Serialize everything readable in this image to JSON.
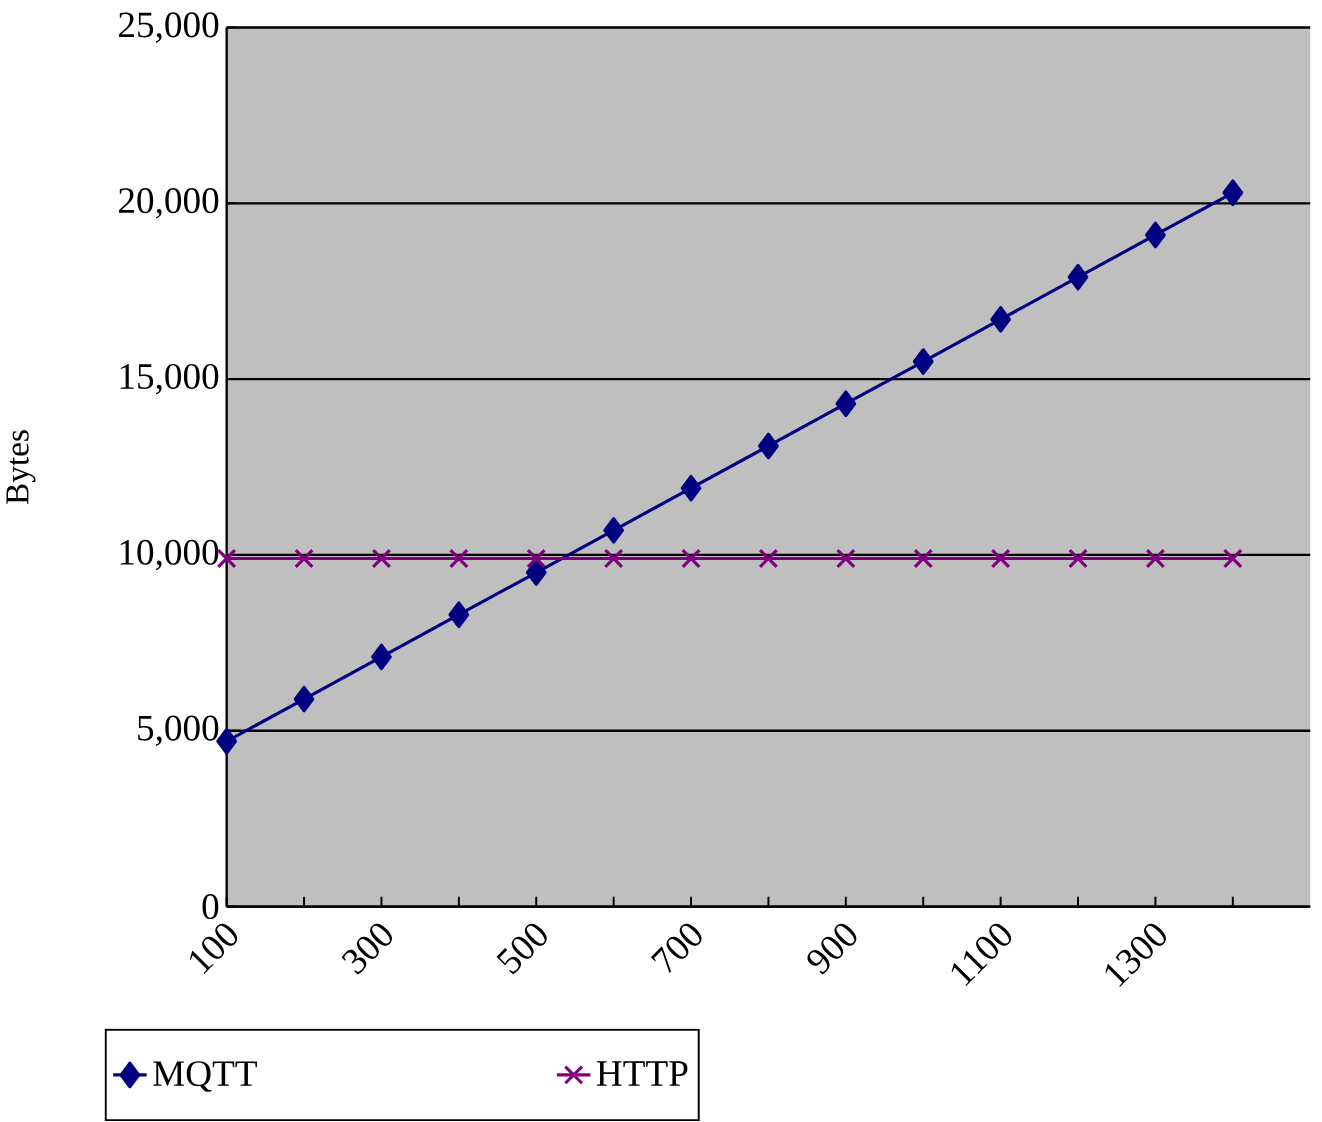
{
  "chart_data": {
    "type": "line",
    "ylabel": "Bytes",
    "categories": [
      "100",
      null,
      "300",
      null,
      "500",
      null,
      "700",
      null,
      "900",
      null,
      "1100",
      null,
      "1300",
      null
    ],
    "series": [
      {
        "name": "MQTT",
        "color": "#000080",
        "marker": "diamond",
        "values": [
          4700,
          5900,
          7100,
          8300,
          9500,
          10700,
          11900,
          13100,
          14300,
          15500,
          16700,
          17900,
          19100,
          20300
        ]
      },
      {
        "name": "HTTP",
        "color": "#800080",
        "marker": "cross",
        "values": [
          9900,
          9900,
          9900,
          9900,
          9900,
          9900,
          9900,
          9900,
          9900,
          9900,
          9900,
          9900,
          9900,
          9900
        ]
      }
    ],
    "ylim": [
      0,
      25000
    ],
    "yticks": [
      {
        "value": 0,
        "label": "0"
      },
      {
        "value": 5000,
        "label": "5,000"
      },
      {
        "value": 10000,
        "label": "10,000"
      },
      {
        "value": 15000,
        "label": "15,000"
      },
      {
        "value": 20000,
        "label": "20,000"
      },
      {
        "value": 25000,
        "label": "25,000"
      }
    ],
    "grid": "y",
    "legend": "bottom"
  }
}
